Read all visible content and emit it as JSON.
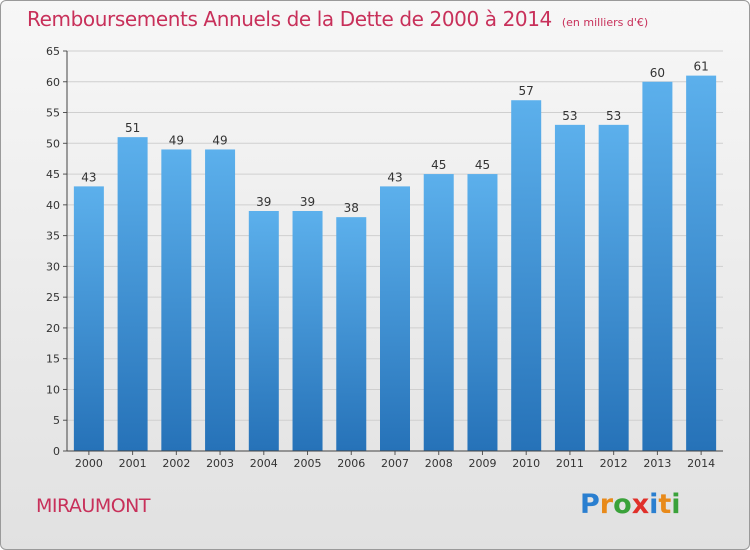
{
  "chart_data": {
    "type": "bar",
    "title": "Remboursements Annuels de la Dette de 2000 à 2014",
    "unit_note": "(en milliers d'€)",
    "categories": [
      "2000",
      "2001",
      "2002",
      "2003",
      "2004",
      "2005",
      "2006",
      "2007",
      "2008",
      "2009",
      "2010",
      "2011",
      "2012",
      "2013",
      "2014"
    ],
    "values": [
      43,
      51,
      49,
      49,
      39,
      39,
      38,
      43,
      45,
      45,
      57,
      53,
      53,
      60,
      61
    ],
    "xlabel": "",
    "ylabel": "",
    "ylim": [
      0,
      65
    ],
    "yticks": [
      0,
      5,
      10,
      15,
      20,
      25,
      30,
      35,
      40,
      45,
      50,
      55,
      60,
      65
    ],
    "grid": true,
    "legend": "none",
    "bar_color": "#3a8fd8",
    "title_color": "#c8305a"
  },
  "commune": "MIRAUMONT",
  "logo": {
    "letters": [
      "P",
      "r",
      "o",
      "x",
      "i",
      "t",
      "i"
    ],
    "colors": [
      "#2a7fd0",
      "#e88a1a",
      "#3aa23a",
      "#e0302a",
      "#2a7fd0",
      "#e88a1a",
      "#3aa23a"
    ]
  }
}
